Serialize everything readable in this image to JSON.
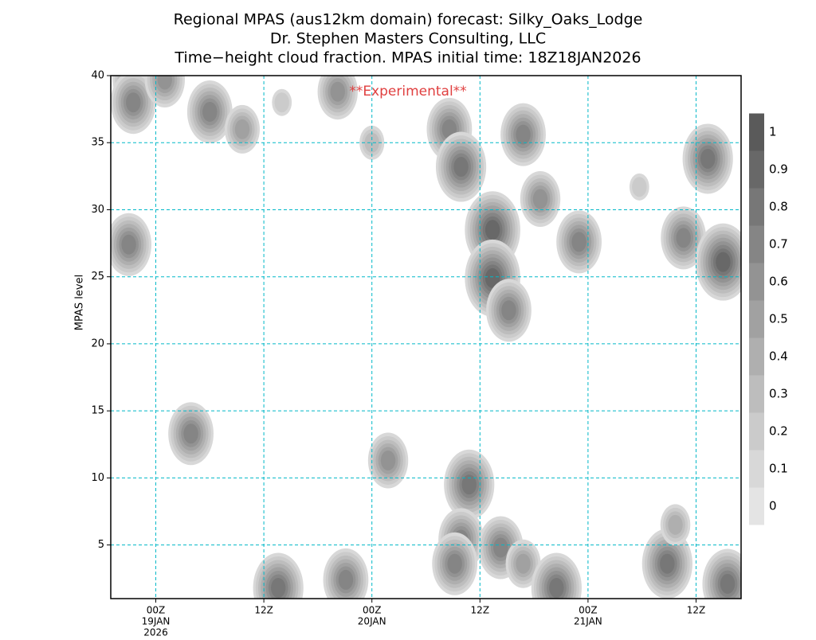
{
  "chart_data": {
    "type": "contour",
    "title": [
      "Regional MPAS (aus12km domain) forecast: Silky_Oaks_Lodge",
      "Dr. Stephen Masters Consulting, LLC",
      "Time−height cloud fraction.    MPAS initial time: 18Z18JAN2026"
    ],
    "annotation": "**Experimental**",
    "ylabel": "MPAS level",
    "xlim": [
      -5,
      65
    ],
    "ylim": [
      1,
      40
    ],
    "xticks": [
      {
        "value": 0,
        "label": [
          "00Z",
          "19JAN",
          "2026"
        ]
      },
      {
        "value": 12,
        "label": [
          "12Z"
        ]
      },
      {
        "value": 24,
        "label": [
          "00Z",
          "20JAN"
        ]
      },
      {
        "value": 36,
        "label": [
          "12Z"
        ]
      },
      {
        "value": 48,
        "label": [
          "00Z",
          "21JAN"
        ]
      },
      {
        "value": 60,
        "label": [
          "12Z"
        ]
      }
    ],
    "yticks": [
      5,
      10,
      15,
      20,
      25,
      30,
      35,
      40
    ],
    "grid": true,
    "grid_color": "#00b8c8",
    "colorbar": {
      "levels": [
        0,
        0.1,
        0.2,
        0.3,
        0.4,
        0.5,
        0.6,
        0.7,
        0.8,
        0.9,
        1
      ],
      "colors": [
        "#e4e4e4",
        "#d8d8d8",
        "#cbcbcb",
        "#bdbdbd",
        "#afafaf",
        "#a1a1a1",
        "#939393",
        "#858585",
        "#777777",
        "#686868",
        "#5a5a5a"
      ]
    },
    "x": [
      -2.3,
      -2.5,
      1,
      6,
      9.6,
      -3,
      3.9,
      14,
      20.2,
      24,
      25.8,
      32.6,
      33.9,
      37.4,
      37.4,
      39.2,
      40.8,
      42.7,
      47,
      53.7,
      58.6,
      61.3,
      63,
      34.8,
      33.9,
      33.2,
      38.3,
      40.8,
      44.5,
      13.6,
      21.1,
      56.8,
      57.7,
      63.5
    ],
    "y": [
      39.8,
      38,
      39.7,
      37.3,
      36,
      27.4,
      13.3,
      38,
      38.8,
      35,
      11.3,
      36,
      33.2,
      28.5,
      24.9,
      22.5,
      35.6,
      30.8,
      27.6,
      31.7,
      27.9,
      33.8,
      26.1,
      9.5,
      5.4,
      3.6,
      4.8,
      3.6,
      1.8,
      1.8,
      2.4,
      3.6,
      6.5,
      2.1
    ],
    "values": [
      0.7,
      0.7,
      0.6,
      0.7,
      0.5,
      0.7,
      0.7,
      0.2,
      0.6,
      0.3,
      0.6,
      0.7,
      0.8,
      0.9,
      0.9,
      0.7,
      0.7,
      0.6,
      0.7,
      0.2,
      0.7,
      0.8,
      0.9,
      0.8,
      0.7,
      0.7,
      0.7,
      0.5,
      0.8,
      0.8,
      0.7,
      0.8,
      0.4,
      0.8
    ]
  }
}
